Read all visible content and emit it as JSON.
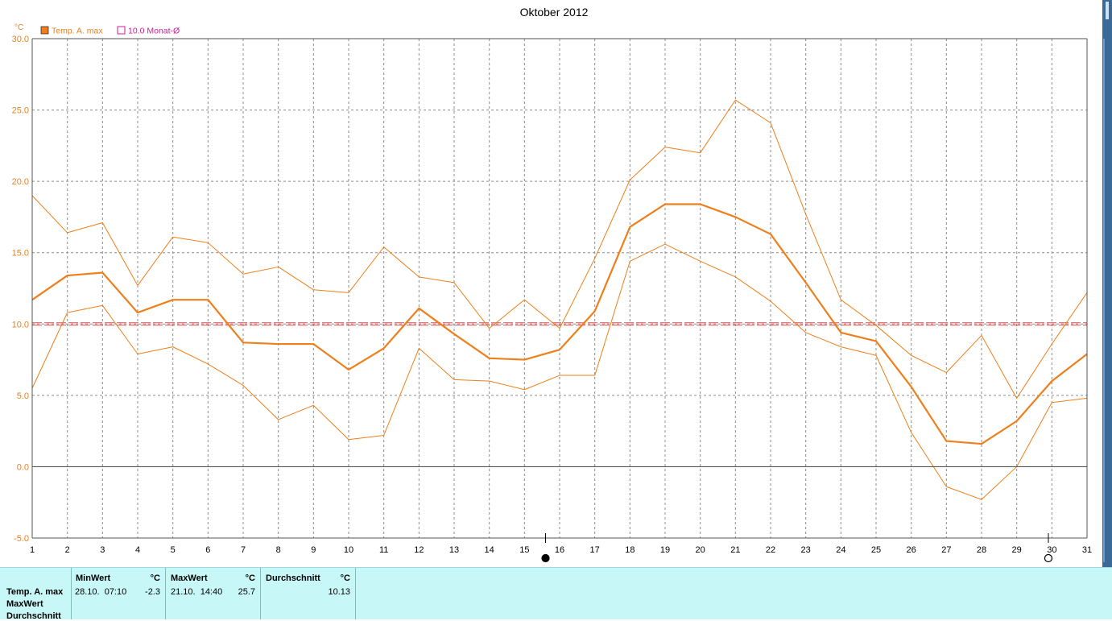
{
  "title": "Oktober 2012",
  "y_unit": "°C",
  "legend": [
    {
      "label": "Temp. A. max",
      "color": "#ee7f1a",
      "marker": "filled"
    },
    {
      "label": "10.0 Monat-Ø",
      "color": "#cc1b9b",
      "marker": "hollow"
    }
  ],
  "colors": {
    "series": "#ee7f1a",
    "mean_line": "#e24a4a",
    "grid": "#8c8c8c",
    "axis_text": "#ee7f1a",
    "panel_bg": "#c8f7f7"
  },
  "moon_phases": [
    {
      "position_day": 15.6,
      "icon": "full-moon-icon"
    },
    {
      "position_day": 29.9,
      "icon": "new-moon-icon"
    }
  ],
  "chart_data": {
    "type": "line",
    "title": "Oktober 2012",
    "ylabel": "°C",
    "ylim": [
      -5,
      30
    ],
    "yticks": [
      "-5.0",
      "0.0",
      "5.0",
      "10.0",
      "15.0",
      "20.0",
      "25.0",
      "30.0"
    ],
    "ytick_values": [
      -5,
      0,
      5,
      10,
      15,
      20,
      25,
      30
    ],
    "x": [
      1,
      2,
      3,
      4,
      5,
      6,
      7,
      8,
      9,
      10,
      11,
      12,
      13,
      14,
      15,
      16,
      17,
      18,
      19,
      20,
      21,
      22,
      23,
      24,
      25,
      26,
      27,
      28,
      29,
      30,
      31
    ],
    "xticks": [
      "1",
      "2",
      "3",
      "4",
      "5",
      "6",
      "7",
      "8",
      "9",
      "10",
      "11",
      "12",
      "13",
      "14",
      "15",
      "16",
      "17",
      "18",
      "19",
      "20",
      "21",
      "22",
      "23",
      "24",
      "25",
      "26",
      "27",
      "28",
      "29",
      "30",
      "31"
    ],
    "grid": true,
    "legend_position": "top-left",
    "series": [
      {
        "name": "Temp. A. max",
        "role": "mean",
        "values": [
          11.7,
          13.4,
          13.6,
          10.8,
          11.7,
          11.7,
          8.7,
          8.6,
          8.6,
          6.8,
          8.3,
          11.1,
          9.3,
          7.6,
          7.5,
          8.2,
          10.9,
          16.8,
          18.4,
          18.4,
          17.5,
          16.3,
          12.9,
          9.4,
          8.8,
          5.6,
          1.8,
          1.6,
          3.2,
          6.0,
          7.9
        ]
      },
      {
        "role": "upper",
        "values": [
          19.0,
          16.4,
          17.1,
          12.7,
          16.1,
          15.7,
          13.5,
          14.0,
          12.4,
          12.2,
          15.4,
          13.3,
          12.9,
          9.7,
          11.7,
          9.7,
          14.6,
          20.1,
          22.4,
          22.0,
          25.7,
          24.1,
          17.7,
          11.7,
          9.9,
          7.8,
          6.6,
          9.2,
          4.8,
          8.6,
          12.2
        ]
      },
      {
        "role": "lower",
        "values": [
          5.5,
          10.8,
          11.3,
          7.9,
          8.4,
          7.2,
          5.7,
          3.3,
          4.3,
          1.9,
          2.2,
          8.3,
          6.1,
          6.0,
          5.4,
          6.4,
          6.4,
          14.4,
          15.6,
          14.4,
          13.3,
          11.6,
          9.4,
          8.4,
          7.8,
          2.4,
          -1.4,
          -2.3,
          0.0,
          4.5,
          4.8
        ]
      }
    ],
    "reference_line": {
      "name": "10.0 Monat-Ø",
      "value": 10.0
    }
  },
  "stats": {
    "row_labels": [
      "Temp. A. max",
      "MaxWert",
      "Durchschnitt"
    ],
    "min": {
      "header": "MinWert",
      "unit": "°C",
      "datetime": "28.10.  07:10",
      "value": "-2.3"
    },
    "max": {
      "header": "MaxWert",
      "unit": "°C",
      "datetime": "21.10.  14:40",
      "value": "25.7"
    },
    "avg": {
      "header": "Durchschnitt",
      "unit": "°C",
      "value": "10.13"
    }
  }
}
